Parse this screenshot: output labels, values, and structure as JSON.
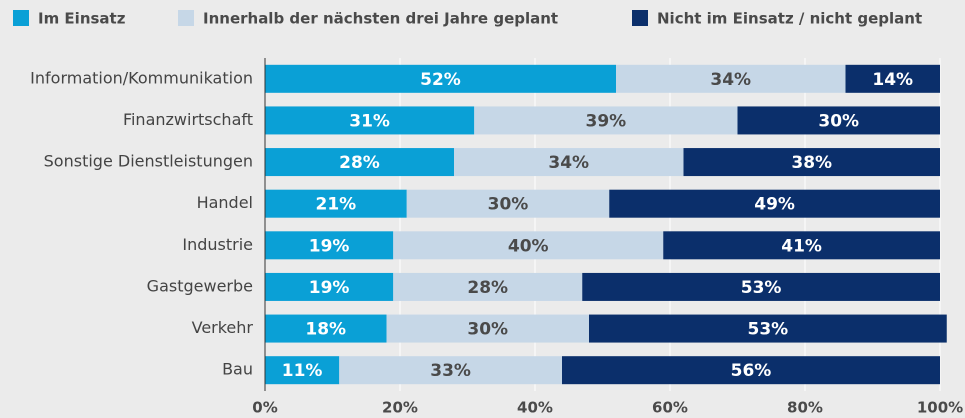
{
  "chart_data": {
    "type": "stacked_bar_horizontal",
    "categories": [
      "Information/Kommunikation",
      "Finanzwirtschaft",
      "Sonstige Dienstleistungen",
      "Handel",
      "Industrie",
      "Gastgewerbe",
      "Verkehr",
      "Bau"
    ],
    "series": [
      {
        "name": "Im Einsatz",
        "color": "#0aa0d6",
        "label_color": "#ffffff",
        "values": [
          52,
          31,
          28,
          21,
          19,
          19,
          18,
          11
        ],
        "value_labels": [
          "52%",
          "31%",
          "28%",
          "21%",
          "19%",
          "19%",
          "18%",
          "11%"
        ]
      },
      {
        "name": "Innerhalb der nächsten drei Jahre geplant",
        "color": "#c6d7e7",
        "label_color": "#4a4a4a",
        "values": [
          34,
          39,
          34,
          30,
          40,
          28,
          30,
          33
        ],
        "value_labels": [
          "34%",
          "39%",
          "34%",
          "30%",
          "40%",
          "28%",
          "30%",
          "33%"
        ]
      },
      {
        "name": "Nicht im Einsatz / nicht geplant",
        "color": "#0b2f6b",
        "label_color": "#ffffff",
        "values": [
          14,
          30,
          38,
          49,
          41,
          53,
          53,
          56
        ],
        "value_labels": [
          "14%",
          "30%",
          "38%",
          "49%",
          "41%",
          "53%",
          "53%",
          "56%"
        ]
      }
    ],
    "xlim": [
      0,
      100
    ],
    "xticks": [
      {
        "value": 0,
        "label": "0%"
      },
      {
        "value": 20,
        "label": "20%"
      },
      {
        "value": 40,
        "label": "40%"
      },
      {
        "value": 60,
        "label": "60%"
      },
      {
        "value": 80,
        "label": "80%"
      },
      {
        "value": 100,
        "label": "100%"
      }
    ],
    "grid": true,
    "legend": "top"
  }
}
